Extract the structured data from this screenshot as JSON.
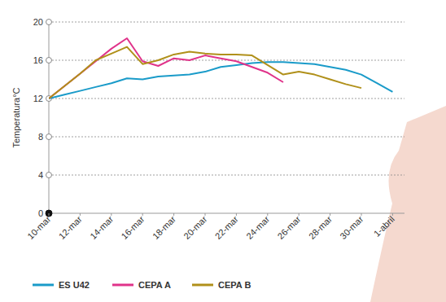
{
  "chart_data": {
    "type": "line",
    "y_label": "Temperatura°C",
    "categories": [
      "10-mar",
      null,
      "12-mar",
      null,
      "14-mar",
      null,
      "16-mar",
      null,
      "18-mar",
      null,
      "20-mar",
      null,
      "22-mar",
      null,
      "24-mar",
      null,
      "26-mar",
      null,
      "28-mar",
      null,
      "30-mar",
      null,
      "1-abril"
    ],
    "series": [
      {
        "name": "ES U42",
        "color": "#1a9bc9",
        "values": [
          12.0,
          12.4,
          12.8,
          13.2,
          13.6,
          14.1,
          14.0,
          14.3,
          14.4,
          14.5,
          14.8,
          15.3,
          15.5,
          15.7,
          15.8,
          15.8,
          15.7,
          15.6,
          15.3,
          15.0,
          14.5,
          13.6,
          12.7
        ]
      },
      {
        "name": "CEPA A",
        "color": "#e0338a",
        "values": [
          12.0,
          13.3,
          14.6,
          15.9,
          17.2,
          18.3,
          15.9,
          15.4,
          16.2,
          16.0,
          16.5,
          16.2,
          15.9,
          15.3,
          14.7,
          13.7,
          null,
          null,
          null,
          null,
          null,
          null,
          null
        ]
      },
      {
        "name": "CEPA B",
        "color": "#b0901a",
        "values": [
          12.0,
          13.3,
          14.6,
          16.0,
          16.7,
          17.4,
          15.6,
          16.0,
          16.6,
          16.9,
          16.7,
          16.6,
          16.6,
          16.5,
          15.5,
          14.5,
          14.8,
          14.5,
          14.0,
          13.5,
          13.1,
          null,
          null
        ]
      }
    ],
    "ylim": [
      0,
      20
    ],
    "yticks": [
      0,
      4,
      8,
      12,
      16,
      20
    ],
    "grid": true,
    "legend": "bottom"
  }
}
